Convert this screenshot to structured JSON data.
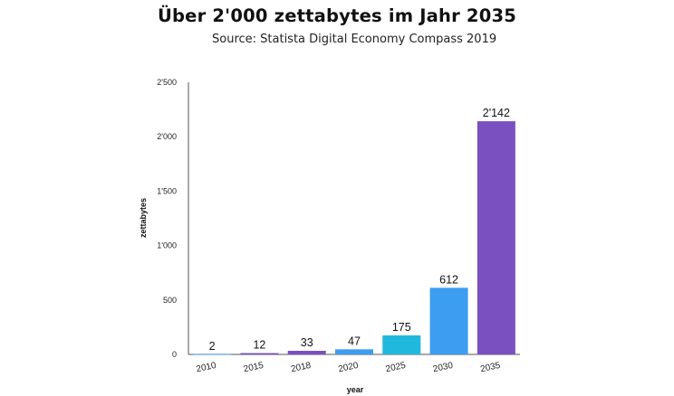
{
  "chart_data": {
    "type": "bar",
    "title": "Über 2'000 zettabytes im Jahr 2035",
    "subtitle": "Source: Statista Digital Economy Compass 2019",
    "xlabel": "year",
    "ylabel": "zettabytes",
    "categories": [
      "2010",
      "2015",
      "2018",
      "2020",
      "2025",
      "2030",
      "2035"
    ],
    "values": [
      2,
      12,
      33,
      47,
      175,
      612,
      2142
    ],
    "value_labels": [
      "2",
      "12",
      "33",
      "47",
      "175",
      "612",
      "2'142"
    ],
    "colors": [
      "#3d9df0",
      "#7a4fc0",
      "#7a4fc0",
      "#3d9df0",
      "#20b8dc",
      "#3d9df0",
      "#7a4fc0"
    ],
    "ylim": [
      0,
      2500
    ],
    "yticks": [
      0,
      500,
      1000,
      1500,
      2000,
      2500
    ],
    "ytick_labels": [
      "0",
      "500",
      "1'000",
      "1'500",
      "2'000",
      "2'500"
    ],
    "grid": false,
    "legend": "none"
  }
}
